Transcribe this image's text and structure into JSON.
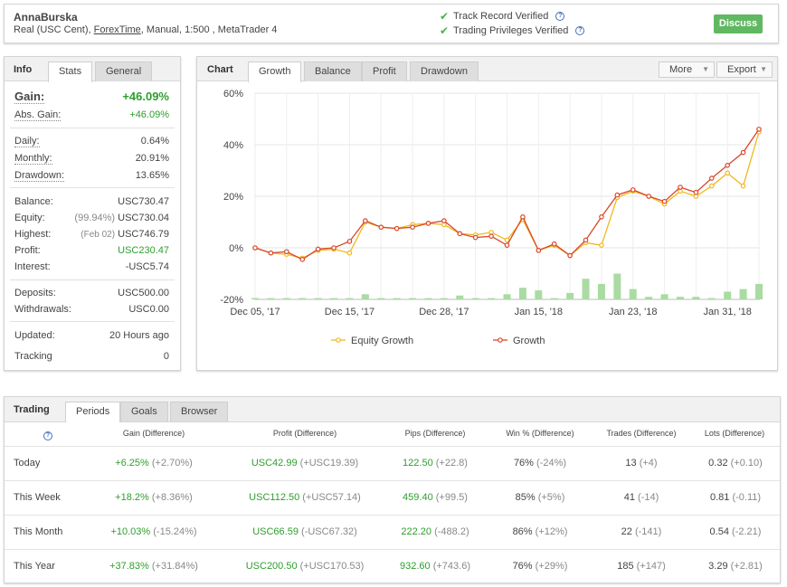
{
  "header": {
    "name": "AnnaBurska",
    "desc_prefix": "Real (USC Cent), ",
    "broker": "ForexTime",
    "desc_suffix": ", Manual, 1:500 , MetaTrader 4",
    "verify1": "Track Record Verified",
    "verify2": "Trading Privileges Verified",
    "discuss": "Discuss",
    "question_glyph": "?"
  },
  "info": {
    "tab_title": "Info",
    "tabs": [
      "Stats",
      "General"
    ],
    "gain": {
      "label": "Gain:",
      "value": "+46.09%"
    },
    "abs_gain": {
      "label": "Abs. Gain:",
      "value": "+46.09%"
    },
    "daily": {
      "label": "Daily:",
      "value": "0.64%"
    },
    "monthly": {
      "label": "Monthly:",
      "value": "20.91%"
    },
    "drawdown": {
      "label": "Drawdown:",
      "value": "13.65%"
    },
    "balance": {
      "label": "Balance:",
      "value": "USC730.47"
    },
    "equity": {
      "label": "Equity:",
      "note": "(99.94%)",
      "value": "USC730.04"
    },
    "highest": {
      "label": "Highest:",
      "note": "(Feb 02)",
      "value": "USC746.79"
    },
    "profit": {
      "label": "Profit:",
      "value": "USC230.47"
    },
    "interest": {
      "label": "Interest:",
      "value": "-USC5.74"
    },
    "deposits": {
      "label": "Deposits:",
      "value": "USC500.00"
    },
    "withdrawals": {
      "label": "Withdrawals:",
      "value": "USC0.00"
    },
    "updated": {
      "label": "Updated:",
      "value": "20 Hours ago"
    },
    "tracking": {
      "label": "Tracking",
      "value": "0"
    }
  },
  "chart": {
    "tab_title": "Chart",
    "tabs": [
      "Growth",
      "Balance",
      "Profit",
      "Drawdown"
    ],
    "more": "More",
    "export": "Export",
    "dropdown_arrow": "▼"
  },
  "chart_data": {
    "type": "line",
    "ylim": [
      -20,
      60
    ],
    "yticks": [
      "60%",
      "40%",
      "20%",
      "0%",
      "-20%"
    ],
    "ytick_values": [
      60,
      40,
      20,
      0,
      -20
    ],
    "xticks": [
      {
        "label": "Dec 05, '17",
        "index": 0
      },
      {
        "label": "Dec 15, '17",
        "index": 6
      },
      {
        "label": "Dec 28, '17",
        "index": 12
      },
      {
        "label": "Jan 15, '18",
        "index": 18
      },
      {
        "label": "Jan 23, '18",
        "index": 24
      },
      {
        "label": "Jan 31, '18",
        "index": 30
      }
    ],
    "series": [
      {
        "name": "Equity Growth",
        "color": "#f2b71c",
        "values": [
          0,
          -2,
          -2.5,
          -4,
          -1,
          -0.5,
          -2,
          10,
          8,
          7.5,
          9,
          9.5,
          9,
          5.5,
          5,
          6,
          3,
          11,
          -1,
          1,
          -3,
          2,
          1,
          19.5,
          22,
          20,
          17,
          22,
          20,
          24,
          29,
          24,
          45
        ]
      },
      {
        "name": "Growth",
        "color": "#d9472b",
        "values": [
          0,
          -2,
          -1.5,
          -4.5,
          -0.5,
          0,
          2.5,
          10.5,
          8,
          7.5,
          8,
          9.5,
          10.5,
          5.5,
          4,
          4.5,
          1,
          12,
          -1,
          1.5,
          -3,
          3,
          12,
          20.5,
          22.5,
          20,
          18,
          23.5,
          21.5,
          27,
          32,
          37,
          46
        ]
      }
    ],
    "bars": [
      0.5,
      0.5,
      0.5,
      0.5,
      0.5,
      0.5,
      0.5,
      2,
      0.5,
      0.5,
      0.5,
      0.5,
      0.5,
      1.5,
      0.5,
      0.5,
      2,
      4.5,
      3.5,
      0.5,
      2.5,
      8,
      6,
      10,
      4,
      1,
      2,
      1,
      1,
      0.5,
      3,
      4,
      6
    ],
    "bar_color": "#a9dba2",
    "grid": true,
    "legend": "bottom"
  },
  "trading": {
    "tab_title": "Trading",
    "tabs": [
      "Periods",
      "Goals",
      "Browser"
    ],
    "columns": [
      "Gain (Difference)",
      "Profit (Difference)",
      "Pips (Difference)",
      "Win % (Difference)",
      "Trades (Difference)",
      "Lots (Difference)"
    ],
    "rows": [
      {
        "period": "Today",
        "gain": "+6.25%",
        "gain_d": "(+2.70%)",
        "profit": "USC42.99",
        "profit_d": "(+USC19.39)",
        "pips": "122.50",
        "pips_d": "(+22.8)",
        "win": "76%",
        "win_d": "(-24%)",
        "trades": "13",
        "trades_d": "(+4)",
        "lots": "0.32",
        "lots_d": "(+0.10)"
      },
      {
        "period": "This Week",
        "gain": "+18.2%",
        "gain_d": "(+8.36%)",
        "profit": "USC112.50",
        "profit_d": "(+USC57.14)",
        "pips": "459.40",
        "pips_d": "(+99.5)",
        "win": "85%",
        "win_d": "(+5%)",
        "trades": "41",
        "trades_d": "(-14)",
        "lots": "0.81",
        "lots_d": "(-0.11)"
      },
      {
        "period": "This Month",
        "gain": "+10.03%",
        "gain_d": "(-15.24%)",
        "profit": "USC66.59",
        "profit_d": "(-USC67.32)",
        "pips": "222.20",
        "pips_d": "(-488.2)",
        "win": "86%",
        "win_d": "(+12%)",
        "trades": "22",
        "trades_d": "(-141)",
        "lots": "0.54",
        "lots_d": "(-2.21)"
      },
      {
        "period": "This Year",
        "gain": "+37.83%",
        "gain_d": "(+31.84%)",
        "profit": "USC200.50",
        "profit_d": "(+USC170.53)",
        "pips": "932.60",
        "pips_d": "(+743.6)",
        "win": "76%",
        "win_d": "(+29%)",
        "trades": "185",
        "trades_d": "(+147)",
        "lots": "3.29",
        "lots_d": "(+2.81)"
      }
    ]
  }
}
